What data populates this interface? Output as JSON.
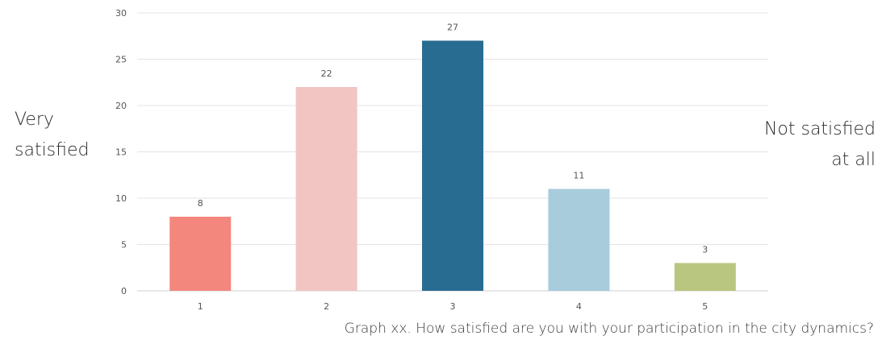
{
  "chart_data": {
    "type": "bar",
    "categories": [
      "1",
      "2",
      "3",
      "4",
      "5"
    ],
    "values": [
      8,
      22,
      27,
      11,
      3
    ],
    "colors": [
      "#f4877d",
      "#f2c4c2",
      "#286c91",
      "#a8ccdc",
      "#b8c67f"
    ],
    "ylim": [
      0,
      30
    ],
    "yticks": [
      "0",
      "5",
      "10",
      "15",
      "20",
      "25",
      "30"
    ],
    "grid": true,
    "data_labels": [
      "8",
      "22",
      "27",
      "11",
      "3"
    ]
  },
  "labels": {
    "left": [
      "Very",
      "satisfied"
    ],
    "right": [
      "Not satisfied",
      "at all"
    ]
  },
  "caption": "Graph xx. How satisfied are you with your participation in the city dynamics?"
}
